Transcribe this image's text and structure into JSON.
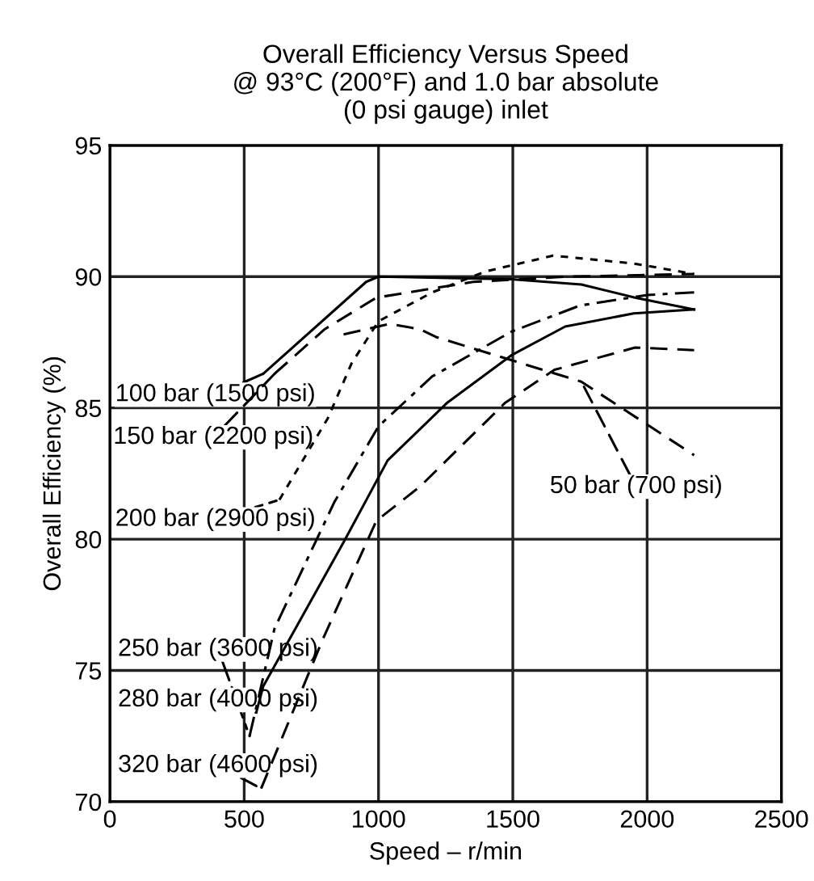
{
  "chart_data": {
    "type": "line",
    "title": "Overall Efficiency Versus Speed\n@ 93°C (200°F) and 1.0 bar absolute\n(0 psi gauge) inlet",
    "xlabel": "Speed – r/min",
    "ylabel": "Overall Efficiency (%)",
    "xlim": [
      0,
      2500
    ],
    "xticks": [
      0,
      500,
      1000,
      1500,
      2000,
      2500
    ],
    "ylim": [
      70,
      95
    ],
    "yticks": [
      70,
      75,
      80,
      85,
      90,
      95
    ],
    "grid": true,
    "legend": "left",
    "marker": "none",
    "series": [
      {
        "name": "100 bar (1500 psi)",
        "color": "#000000",
        "line_style": "solid",
        "x": [
          571,
          954,
          1000,
          1495,
          1755,
          1955,
          2175
        ],
        "values": [
          86.3,
          89.8,
          90.0,
          89.9,
          89.7,
          89.2,
          88.75
        ]
      },
      {
        "name": "50 bar (700 psi)",
        "color": "#000000",
        "line_style": "dashed",
        "x": [
          870,
          1040,
          1154,
          1214,
          1755,
          2175
        ],
        "values": [
          87.8,
          88.2,
          88.0,
          87.7,
          86.0,
          83.2
        ]
      },
      {
        "name": "150 bar (2200 psi)",
        "color": "#000000",
        "line_style": "dashed",
        "x": [
          613,
          800,
          992,
          1352,
          1700,
          2175
        ],
        "values": [
          86.3,
          88.0,
          89.2,
          89.8,
          90.0,
          90.1
        ]
      },
      {
        "name": "200 bar (2900 psi)",
        "color": "#000000",
        "line_style": "dotted",
        "x": [
          631,
          811,
          900,
          1000,
          1200,
          1400,
          1650,
          1950,
          2175
        ],
        "values": [
          81.5,
          84.6,
          86.7,
          88.3,
          89.4,
          90.2,
          90.8,
          90.5,
          90.1
        ]
      },
      {
        "name": "250 bar (3600 psi)",
        "color": "#000000",
        "line_style": "dashdot",
        "x": [
          520,
          613,
          835,
          1000,
          1200,
          1494,
          1750,
          2000,
          2175
        ],
        "values": [
          72.5,
          76.6,
          81.4,
          84.3,
          86.2,
          87.9,
          88.9,
          89.3,
          89.4
        ]
      },
      {
        "name": "280 bar (4000 psi)",
        "color": "#000000",
        "line_style": "solid",
        "x": [
          545,
          571,
          871,
          1034,
          1256,
          1494,
          1695,
          1950,
          2175
        ],
        "values": [
          73.4,
          74.4,
          79.9,
          83.0,
          85.2,
          87.0,
          88.1,
          88.6,
          88.75
        ]
      },
      {
        "name": "320 bar (4600 psi)",
        "color": "#000000",
        "line_style": "dashed",
        "x": [
          563,
          793,
          992,
          1154,
          1472,
          1655,
          1955,
          2175
        ],
        "values": [
          70.5,
          76.2,
          80.7,
          82.0,
          85.2,
          86.45,
          87.3,
          87.2
        ]
      }
    ]
  }
}
